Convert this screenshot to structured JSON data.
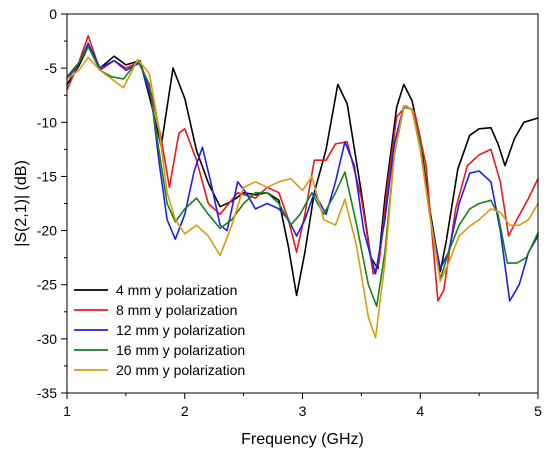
{
  "chart_data": {
    "type": "line",
    "title": "",
    "xlabel": "Frequency (GHz)",
    "ylabel": "|S(2,1)| (dB)",
    "xlim": [
      1,
      5
    ],
    "ylim": [
      -35,
      0
    ],
    "xticks": [
      1,
      2,
      3,
      4,
      5
    ],
    "yticks": [
      0,
      -5,
      -10,
      -15,
      -20,
      -25,
      -30,
      -35
    ],
    "grid": false,
    "legend_position": "bottom-left",
    "series": [
      {
        "name": "4 mm y polarization",
        "color": "#000000",
        "points": [
          [
            1,
            -6.5
          ],
          [
            1.1,
            -4.8
          ],
          [
            1.18,
            -3.0
          ],
          [
            1.28,
            -5.0
          ],
          [
            1.4,
            -3.9
          ],
          [
            1.5,
            -4.7
          ],
          [
            1.62,
            -4.3
          ],
          [
            1.72,
            -8.5
          ],
          [
            1.8,
            -12.2
          ],
          [
            1.9,
            -5.0
          ],
          [
            2.0,
            -7.8
          ],
          [
            2.1,
            -12.6
          ],
          [
            2.2,
            -15.6
          ],
          [
            2.3,
            -17.8
          ],
          [
            2.4,
            -17.3
          ],
          [
            2.5,
            -16.5
          ],
          [
            2.6,
            -16.7
          ],
          [
            2.7,
            -16.5
          ],
          [
            2.8,
            -17.2
          ],
          [
            2.88,
            -21.5
          ],
          [
            2.95,
            -26.0
          ],
          [
            3.02,
            -22.0
          ],
          [
            3.1,
            -16.5
          ],
          [
            3.2,
            -12.5
          ],
          [
            3.3,
            -6.5
          ],
          [
            3.38,
            -8.3
          ],
          [
            3.5,
            -16.5
          ],
          [
            3.58,
            -22.5
          ],
          [
            3.64,
            -23.5
          ],
          [
            3.7,
            -17.0
          ],
          [
            3.8,
            -8.6
          ],
          [
            3.86,
            -6.5
          ],
          [
            3.93,
            -8.0
          ],
          [
            4.0,
            -11.5
          ],
          [
            4.08,
            -18.0
          ],
          [
            4.17,
            -23.8
          ],
          [
            4.22,
            -21.0
          ],
          [
            4.32,
            -14.3
          ],
          [
            4.42,
            -11.2
          ],
          [
            4.5,
            -10.6
          ],
          [
            4.6,
            -10.5
          ],
          [
            4.66,
            -12.0
          ],
          [
            4.72,
            -14.0
          ],
          [
            4.8,
            -11.5
          ],
          [
            4.88,
            -10.0
          ],
          [
            5.0,
            -9.6
          ]
        ]
      },
      {
        "name": "8 mm y polarization",
        "color": "#e8191f",
        "points": [
          [
            1,
            -7.0
          ],
          [
            1.1,
            -4.5
          ],
          [
            1.18,
            -2.0
          ],
          [
            1.28,
            -5.2
          ],
          [
            1.4,
            -4.3
          ],
          [
            1.5,
            -5.0
          ],
          [
            1.62,
            -4.4
          ],
          [
            1.72,
            -7.5
          ],
          [
            1.8,
            -11.5
          ],
          [
            1.87,
            -16.0
          ],
          [
            1.95,
            -11.0
          ],
          [
            2.0,
            -10.6
          ],
          [
            2.1,
            -13.5
          ],
          [
            2.2,
            -17.5
          ],
          [
            2.3,
            -18.5
          ],
          [
            2.45,
            -16.5
          ],
          [
            2.6,
            -17.0
          ],
          [
            2.7,
            -16.0
          ],
          [
            2.8,
            -16.5
          ],
          [
            2.88,
            -19.0
          ],
          [
            2.95,
            -22.0
          ],
          [
            3.02,
            -18.5
          ],
          [
            3.1,
            -13.5
          ],
          [
            3.2,
            -13.5
          ],
          [
            3.28,
            -12.0
          ],
          [
            3.38,
            -11.8
          ],
          [
            3.5,
            -17.0
          ],
          [
            3.6,
            -24.0
          ],
          [
            3.65,
            -23.0
          ],
          [
            3.72,
            -16.0
          ],
          [
            3.8,
            -9.5
          ],
          [
            3.88,
            -8.5
          ],
          [
            3.95,
            -9.0
          ],
          [
            4.05,
            -14.0
          ],
          [
            4.15,
            -26.5
          ],
          [
            4.2,
            -25.5
          ],
          [
            4.3,
            -18.0
          ],
          [
            4.4,
            -14.0
          ],
          [
            4.5,
            -13.0
          ],
          [
            4.6,
            -12.5
          ],
          [
            4.68,
            -15.5
          ],
          [
            4.75,
            -20.5
          ],
          [
            4.82,
            -19.0
          ],
          [
            4.92,
            -17.0
          ],
          [
            5.0,
            -15.2
          ]
        ]
      },
      {
        "name": "12 mm y polarization",
        "color": "#1f1fe8",
        "points": [
          [
            1,
            -6.0
          ],
          [
            1.1,
            -4.6
          ],
          [
            1.18,
            -2.7
          ],
          [
            1.28,
            -5.0
          ],
          [
            1.4,
            -4.3
          ],
          [
            1.5,
            -5.2
          ],
          [
            1.62,
            -4.5
          ],
          [
            1.72,
            -8.0
          ],
          [
            1.78,
            -13.5
          ],
          [
            1.85,
            -19.0
          ],
          [
            1.92,
            -20.8
          ],
          [
            2.0,
            -18.5
          ],
          [
            2.08,
            -14.5
          ],
          [
            2.15,
            -12.3
          ],
          [
            2.22,
            -15.5
          ],
          [
            2.3,
            -19.5
          ],
          [
            2.36,
            -20.0
          ],
          [
            2.45,
            -15.5
          ],
          [
            2.52,
            -16.5
          ],
          [
            2.6,
            -18.0
          ],
          [
            2.7,
            -17.5
          ],
          [
            2.8,
            -18.0
          ],
          [
            2.88,
            -19.0
          ],
          [
            2.95,
            -20.5
          ],
          [
            3.02,
            -19.0
          ],
          [
            3.1,
            -16.5
          ],
          [
            3.2,
            -18.5
          ],
          [
            3.28,
            -15.5
          ],
          [
            3.36,
            -11.8
          ],
          [
            3.44,
            -14.0
          ],
          [
            3.52,
            -20.0
          ],
          [
            3.62,
            -24.0
          ],
          [
            3.7,
            -19.0
          ],
          [
            3.78,
            -12.0
          ],
          [
            3.86,
            -8.5
          ],
          [
            3.93,
            -8.8
          ],
          [
            4.0,
            -12.5
          ],
          [
            4.08,
            -18.5
          ],
          [
            4.17,
            -23.5
          ],
          [
            4.24,
            -22.0
          ],
          [
            4.33,
            -17.5
          ],
          [
            4.42,
            -14.7
          ],
          [
            4.5,
            -14.5
          ],
          [
            4.6,
            -15.5
          ],
          [
            4.68,
            -20.0
          ],
          [
            4.76,
            -26.5
          ],
          [
            4.84,
            -25.0
          ],
          [
            4.92,
            -22.0
          ],
          [
            5.0,
            -20.5
          ]
        ]
      },
      {
        "name": "16 mm y polarization",
        "color": "#17811b",
        "points": [
          [
            1,
            -5.8
          ],
          [
            1.1,
            -4.5
          ],
          [
            1.18,
            -3.0
          ],
          [
            1.28,
            -5.2
          ],
          [
            1.38,
            -5.8
          ],
          [
            1.48,
            -6.0
          ],
          [
            1.6,
            -4.3
          ],
          [
            1.7,
            -6.5
          ],
          [
            1.78,
            -12.5
          ],
          [
            1.85,
            -17.5
          ],
          [
            1.92,
            -19.2
          ],
          [
            2.0,
            -18.0
          ],
          [
            2.1,
            -17.0
          ],
          [
            2.2,
            -18.5
          ],
          [
            2.3,
            -19.8
          ],
          [
            2.4,
            -19.0
          ],
          [
            2.5,
            -17.5
          ],
          [
            2.6,
            -16.5
          ],
          [
            2.7,
            -16.5
          ],
          [
            2.8,
            -17.5
          ],
          [
            2.9,
            -19.5
          ],
          [
            2.98,
            -18.5
          ],
          [
            3.08,
            -16.5
          ],
          [
            3.18,
            -18.5
          ],
          [
            3.28,
            -16.5
          ],
          [
            3.36,
            -14.6
          ],
          [
            3.46,
            -19.5
          ],
          [
            3.56,
            -25.0
          ],
          [
            3.63,
            -27.0
          ],
          [
            3.7,
            -22.0
          ],
          [
            3.78,
            -13.0
          ],
          [
            3.86,
            -8.6
          ],
          [
            3.93,
            -8.8
          ],
          [
            4.0,
            -12.0
          ],
          [
            4.08,
            -18.5
          ],
          [
            4.17,
            -24.5
          ],
          [
            4.24,
            -22.0
          ],
          [
            4.33,
            -19.5
          ],
          [
            4.42,
            -18.0
          ],
          [
            4.5,
            -17.5
          ],
          [
            4.6,
            -17.2
          ],
          [
            4.66,
            -18.5
          ],
          [
            4.74,
            -23.0
          ],
          [
            4.82,
            -23.0
          ],
          [
            4.9,
            -22.5
          ],
          [
            5.0,
            -20.2
          ]
        ]
      },
      {
        "name": "20 mm y polarization",
        "color": "#d99b14",
        "points": [
          [
            1,
            -6.0
          ],
          [
            1.1,
            -5.2
          ],
          [
            1.18,
            -4.0
          ],
          [
            1.28,
            -5.2
          ],
          [
            1.38,
            -6.0
          ],
          [
            1.48,
            -6.8
          ],
          [
            1.6,
            -4.2
          ],
          [
            1.7,
            -5.5
          ],
          [
            1.78,
            -10.5
          ],
          [
            1.85,
            -16.5
          ],
          [
            1.92,
            -19.0
          ],
          [
            2.0,
            -20.3
          ],
          [
            2.1,
            -19.5
          ],
          [
            2.2,
            -20.5
          ],
          [
            2.3,
            -22.3
          ],
          [
            2.4,
            -19.5
          ],
          [
            2.5,
            -16.0
          ],
          [
            2.6,
            -15.5
          ],
          [
            2.7,
            -16.0
          ],
          [
            2.8,
            -15.5
          ],
          [
            2.9,
            -15.2
          ],
          [
            3.0,
            -16.3
          ],
          [
            3.08,
            -15.0
          ],
          [
            3.18,
            -19.0
          ],
          [
            3.28,
            -19.5
          ],
          [
            3.36,
            -17.1
          ],
          [
            3.46,
            -21.5
          ],
          [
            3.56,
            -28.0
          ],
          [
            3.62,
            -29.9
          ],
          [
            3.7,
            -23.0
          ],
          [
            3.78,
            -13.0
          ],
          [
            3.86,
            -8.5
          ],
          [
            3.93,
            -8.8
          ],
          [
            4.0,
            -12.5
          ],
          [
            4.08,
            -18.5
          ],
          [
            4.17,
            -24.7
          ],
          [
            4.24,
            -23.0
          ],
          [
            4.33,
            -20.5
          ],
          [
            4.42,
            -19.6
          ],
          [
            4.5,
            -19.0
          ],
          [
            4.6,
            -18.0
          ],
          [
            4.68,
            -18.3
          ],
          [
            4.76,
            -19.5
          ],
          [
            4.84,
            -19.5
          ],
          [
            4.92,
            -19.0
          ],
          [
            5.0,
            -17.5
          ]
        ]
      }
    ]
  }
}
